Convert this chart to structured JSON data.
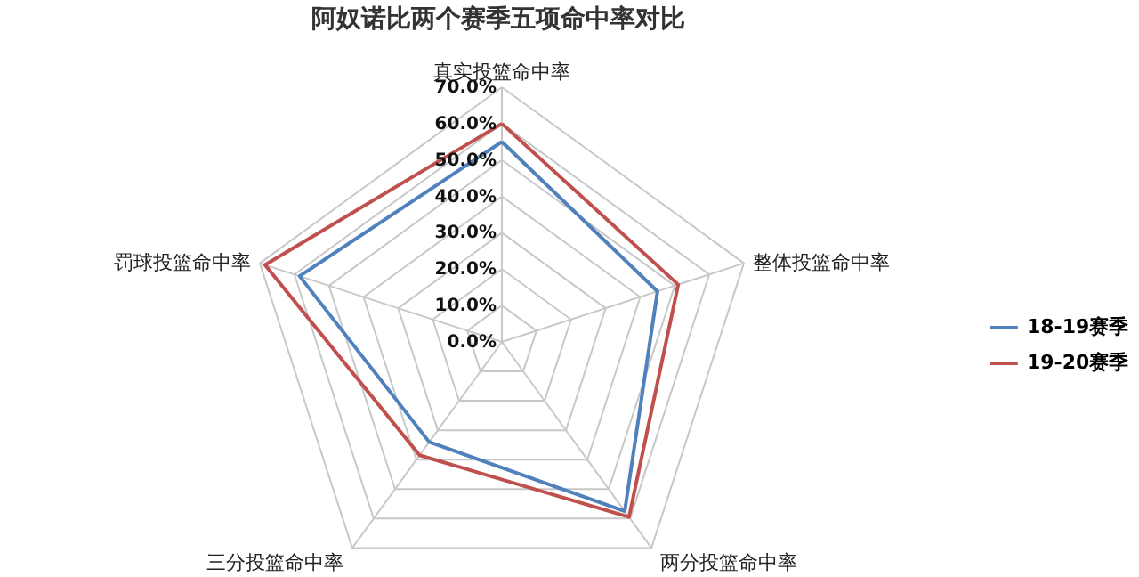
{
  "chart_data": {
    "type": "radar",
    "title": "阿奴诺比两个赛季五项命中率对比",
    "categories": [
      "真实投篮命中率",
      "整体投篮命中率",
      "两分投篮命中率",
      "三分投篮命中率",
      "罚球投篮命中率"
    ],
    "series": [
      {
        "name": "18-19赛季",
        "color": "#4f81bd",
        "values": [
          55,
          45,
          57.5,
          34,
          58.5
        ]
      },
      {
        "name": "19-20赛季",
        "color": "#c0504d",
        "values": [
          60,
          51,
          59.5,
          38.5,
          68.5
        ]
      }
    ],
    "ylim": [
      0,
      70
    ],
    "yticks": [
      {
        "value": 0,
        "label": "0.0%"
      },
      {
        "value": 10,
        "label": "10.0%"
      },
      {
        "value": 20,
        "label": "20.0%"
      },
      {
        "value": 30,
        "label": "30.0%"
      },
      {
        "value": 40,
        "label": "40.0%"
      },
      {
        "value": 50,
        "label": "50.0%"
      },
      {
        "value": 60,
        "label": "60.0%"
      },
      {
        "value": 70,
        "label": "70.0%"
      }
    ],
    "grid": true,
    "legend": "right"
  }
}
